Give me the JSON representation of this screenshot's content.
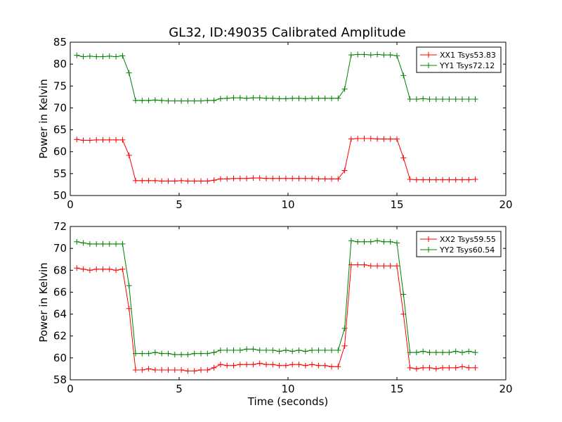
{
  "chart_data": [
    {
      "type": "line",
      "title": "GL32, ID:49035 Calibrated Amplitude",
      "xlabel": "",
      "ylabel": "Power in Kelvin",
      "xlim": [
        0,
        20
      ],
      "ylim": [
        50,
        85
      ],
      "xticks": [
        0,
        5,
        10,
        15,
        20
      ],
      "yticks": [
        50,
        55,
        60,
        65,
        70,
        75,
        80,
        85
      ],
      "legend_position": "top-right",
      "grid": false,
      "x": [
        0.3,
        0.6,
        0.9,
        1.2,
        1.5,
        1.8,
        2.1,
        2.4,
        2.7,
        3.0,
        3.3,
        3.6,
        3.9,
        4.2,
        4.5,
        4.8,
        5.1,
        5.4,
        5.7,
        6.0,
        6.3,
        6.6,
        6.9,
        7.2,
        7.5,
        7.8,
        8.1,
        8.4,
        8.7,
        9.0,
        9.3,
        9.6,
        9.9,
        10.2,
        10.5,
        10.8,
        11.1,
        11.4,
        11.7,
        12.0,
        12.3,
        12.6,
        12.9,
        13.2,
        13.5,
        13.8,
        14.1,
        14.4,
        14.7,
        15.0,
        15.3,
        15.6,
        15.9,
        16.2,
        16.5,
        16.8,
        17.1,
        17.4,
        17.7,
        18.0,
        18.3,
        18.6
      ],
      "series": [
        {
          "name": "XX1 Tsys53.83",
          "color": "#ff0000",
          "values": [
            62.8,
            62.6,
            62.6,
            62.7,
            62.7,
            62.7,
            62.7,
            62.7,
            59.2,
            53.4,
            53.4,
            53.4,
            53.4,
            53.3,
            53.3,
            53.3,
            53.4,
            53.3,
            53.3,
            53.3,
            53.3,
            53.5,
            53.8,
            53.8,
            53.9,
            53.9,
            53.9,
            54.0,
            54.0,
            53.9,
            53.9,
            53.9,
            53.9,
            53.9,
            53.9,
            53.9,
            53.9,
            53.8,
            53.8,
            53.8,
            53.8,
            55.7,
            62.9,
            63.0,
            63.0,
            63.0,
            62.9,
            62.9,
            62.9,
            62.9,
            58.6,
            53.7,
            53.6,
            53.6,
            53.6,
            53.6,
            53.6,
            53.6,
            53.6,
            53.6,
            53.6,
            53.7
          ]
        },
        {
          "name": "YY1 Tsys72.12",
          "color": "#008000",
          "values": [
            82.0,
            81.7,
            81.8,
            81.7,
            81.7,
            81.8,
            81.7,
            81.9,
            78.0,
            71.7,
            71.7,
            71.7,
            71.8,
            71.7,
            71.6,
            71.6,
            71.6,
            71.6,
            71.6,
            71.6,
            71.7,
            71.7,
            72.1,
            72.2,
            72.3,
            72.3,
            72.2,
            72.3,
            72.3,
            72.2,
            72.2,
            72.1,
            72.1,
            72.2,
            72.2,
            72.1,
            72.2,
            72.2,
            72.2,
            72.2,
            72.2,
            74.3,
            82.1,
            82.2,
            82.2,
            82.1,
            82.2,
            82.1,
            82.1,
            81.9,
            77.4,
            72.0,
            72.0,
            72.1,
            72.0,
            72.0,
            72.0,
            72.0,
            72.0,
            72.0,
            72.0,
            72.0
          ]
        }
      ]
    },
    {
      "type": "line",
      "title": "",
      "xlabel": "Time (seconds)",
      "ylabel": "Power in Kelvin",
      "xlim": [
        0,
        20
      ],
      "ylim": [
        58,
        72
      ],
      "xticks": [
        0,
        5,
        10,
        15,
        20
      ],
      "yticks": [
        58,
        60,
        62,
        64,
        66,
        68,
        70,
        72
      ],
      "legend_position": "top-right",
      "grid": false,
      "x": [
        0.3,
        0.6,
        0.9,
        1.2,
        1.5,
        1.8,
        2.1,
        2.4,
        2.7,
        3.0,
        3.3,
        3.6,
        3.9,
        4.2,
        4.5,
        4.8,
        5.1,
        5.4,
        5.7,
        6.0,
        6.3,
        6.6,
        6.9,
        7.2,
        7.5,
        7.8,
        8.1,
        8.4,
        8.7,
        9.0,
        9.3,
        9.6,
        9.9,
        10.2,
        10.5,
        10.8,
        11.1,
        11.4,
        11.7,
        12.0,
        12.3,
        12.6,
        12.9,
        13.2,
        13.5,
        13.8,
        14.1,
        14.4,
        14.7,
        15.0,
        15.3,
        15.6,
        15.9,
        16.2,
        16.5,
        16.8,
        17.1,
        17.4,
        17.7,
        18.0,
        18.3,
        18.6
      ],
      "series": [
        {
          "name": "XX2 Tsys59.55",
          "color": "#ff0000",
          "values": [
            68.2,
            68.1,
            68.0,
            68.1,
            68.1,
            68.1,
            68.0,
            68.1,
            64.5,
            58.9,
            58.9,
            59.0,
            58.9,
            58.9,
            58.9,
            58.9,
            58.9,
            58.8,
            58.8,
            58.9,
            58.9,
            59.1,
            59.4,
            59.3,
            59.3,
            59.4,
            59.4,
            59.4,
            59.5,
            59.4,
            59.4,
            59.3,
            59.3,
            59.4,
            59.4,
            59.3,
            59.4,
            59.3,
            59.3,
            59.2,
            59.2,
            61.1,
            68.5,
            68.5,
            68.5,
            68.4,
            68.4,
            68.4,
            68.4,
            68.4,
            64.0,
            59.1,
            59.0,
            59.1,
            59.1,
            59.0,
            59.1,
            59.1,
            59.1,
            59.2,
            59.1,
            59.1
          ]
        },
        {
          "name": "YY2 Tsys60.54",
          "color": "#008000",
          "values": [
            70.6,
            70.5,
            70.4,
            70.4,
            70.4,
            70.4,
            70.4,
            70.4,
            66.6,
            60.4,
            60.4,
            60.4,
            60.5,
            60.4,
            60.4,
            60.3,
            60.3,
            60.3,
            60.4,
            60.4,
            60.4,
            60.5,
            60.7,
            60.7,
            60.7,
            60.7,
            60.8,
            60.8,
            60.7,
            60.7,
            60.7,
            60.6,
            60.7,
            60.6,
            60.7,
            60.6,
            60.7,
            60.7,
            60.7,
            60.7,
            60.7,
            62.7,
            70.7,
            70.6,
            70.6,
            70.6,
            70.7,
            70.6,
            70.6,
            70.5,
            65.8,
            60.5,
            60.5,
            60.6,
            60.5,
            60.5,
            60.5,
            60.5,
            60.6,
            60.5,
            60.6,
            60.5
          ]
        }
      ]
    }
  ]
}
